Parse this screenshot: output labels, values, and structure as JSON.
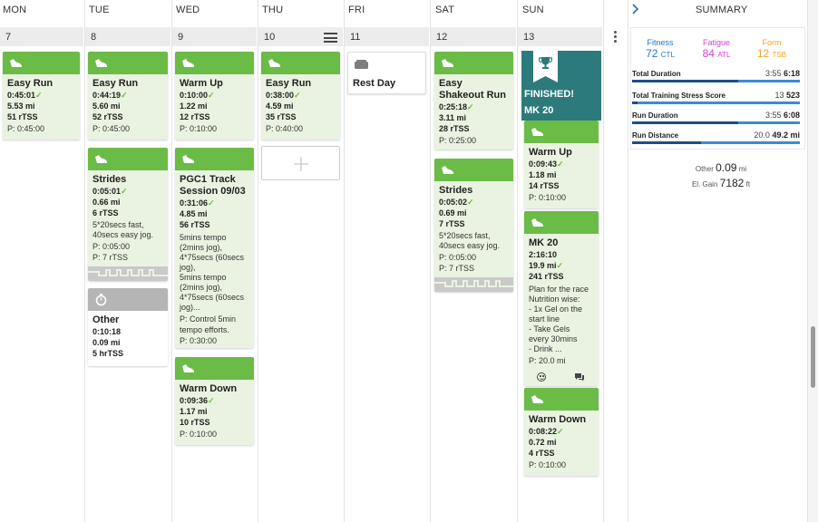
{
  "days": {
    "headers": [
      "MON",
      "TUE",
      "WED",
      "THU",
      "FRI",
      "SAT",
      "SUN"
    ],
    "numbers": [
      "7",
      "8",
      "9",
      "10",
      "11",
      "12",
      "13"
    ]
  },
  "summary": {
    "title": "SUMMARY",
    "fitness": {
      "label": "Fitness",
      "value": "72",
      "unit": "CTL"
    },
    "fatigue": {
      "label": "Fatigue",
      "value": "84",
      "unit": "ATL"
    },
    "form": {
      "label": "Form",
      "value": "12",
      "unit": "TSB"
    },
    "rows": [
      {
        "label": "Total Duration",
        "planned": "3:55",
        "actual": "6:18",
        "fill": 1.0
      },
      {
        "label": "Total Training Stress Score",
        "planned": "13",
        "actual": "523",
        "fill": 1.0
      },
      {
        "label": "Run Duration",
        "planned": "3:55",
        "actual": "6:08",
        "fill": 1.0
      },
      {
        "label": "Run Distance",
        "planned": "20.0",
        "actual": "49.2 mi",
        "fill": 1.0
      }
    ],
    "other_label": "Other",
    "other_value": "0.09",
    "other_unit": "mi",
    "gain_label": "El. Gain",
    "gain_value": "7182",
    "gain_unit": "ft"
  },
  "colors": {
    "completed": "#6bbb47",
    "finished": "#2d7a7c",
    "fitness": "#1f78c1",
    "fatigue": "#d33fd3",
    "form": "#f0a320"
  },
  "mon": {
    "w1": {
      "title": "Easy Run",
      "dur": "0:45:01",
      "dist": "5.53 mi",
      "tss": "51 rTSS",
      "plan": "P: 0:45:00"
    }
  },
  "tue": {
    "w1": {
      "title": "Easy Run",
      "dur": "0:44:19",
      "dist": "5.60 mi",
      "tss": "52 rTSS",
      "plan": "P: 0:45:00"
    },
    "w2": {
      "title": "Strides",
      "dur": "0:05:01",
      "dist": "0.66 mi",
      "tss": "6 rTSS",
      "note": "5*20secs fast, 40secs easy jog.",
      "plan1": "P: 0:05:00",
      "plan2": "P: 7 rTSS"
    },
    "w3": {
      "title": "Other",
      "dur": "0:10:18",
      "dist": "0.09 mi",
      "tss": "5 hrTSS"
    }
  },
  "wed": {
    "w1": {
      "title": "Warm Up",
      "dur": "0:10:00",
      "dist": "1.22 mi",
      "tss": "12 rTSS",
      "plan": "P: 0:10:00"
    },
    "w2": {
      "title": "PGC1 Track Session 09/03",
      "dur": "0:31:06",
      "dist": "4.85 mi",
      "tss": "56 rTSS",
      "note1": "5mins tempo",
      "note2": "(2mins jog),",
      "note3": "4*75secs (60secs",
      "note4": "jog),",
      "note5": "5mins tempo",
      "note6": "(2mins jog),",
      "note7": "4*75secs (60secs",
      "note8": "jog)...",
      "plan1": "P: Control 5min",
      "plan2": "tempo efforts.",
      "plan3": "P: 0:30:00"
    },
    "w3": {
      "title": "Warm Down",
      "dur": "0:09:36",
      "dist": "1.17 mi",
      "tss": "10 rTSS",
      "plan": "P: 0:10:00"
    }
  },
  "thu": {
    "w1": {
      "title": "Easy Run",
      "dur": "0:38:00",
      "dist": "4.59 mi",
      "tss": "35 rTSS",
      "plan": "P: 0:40:00"
    }
  },
  "fri": {
    "w1": {
      "title": "Rest Day"
    }
  },
  "sat": {
    "w1": {
      "title": "Easy Shakeout Run",
      "dur": "0:25:18",
      "dist": "3.11 mi",
      "tss": "28 rTSS",
      "plan": "P: 0:25:00"
    },
    "w2": {
      "title": "Strides",
      "dur": "0:05:02",
      "dist": "0.69 mi",
      "tss": "7 rTSS",
      "note": "5*20secs fast, 40secs easy jog.",
      "plan1": "P: 0:05:00",
      "plan2": "P: 7 rTSS"
    }
  },
  "sun": {
    "event": {
      "status": "FINISHED!",
      "name": "MK 20"
    },
    "w1": {
      "title": "Warm Up",
      "dur": "0:09:43",
      "dist": "1.18 mi",
      "tss": "14 rTSS",
      "plan": "P: 0:10:00"
    },
    "w2": {
      "title": "MK 20",
      "dur": "2:16:10",
      "dist": "19.9 mi",
      "tss": "241 rTSS",
      "note1": "Plan for the race",
      "note2": "Nutrition wise:",
      "note3": "- 1x Gel on the",
      "note4": "start line",
      "note5": "- Take Gels",
      "note6": "every 30mins",
      "note7": "- Drink ...",
      "plan": "P: 20.0 mi"
    },
    "w3": {
      "title": "Warm Down",
      "dur": "0:08:22",
      "dist": "0.72 mi",
      "tss": "4 rTSS",
      "plan": "P: 0:10:00"
    }
  }
}
